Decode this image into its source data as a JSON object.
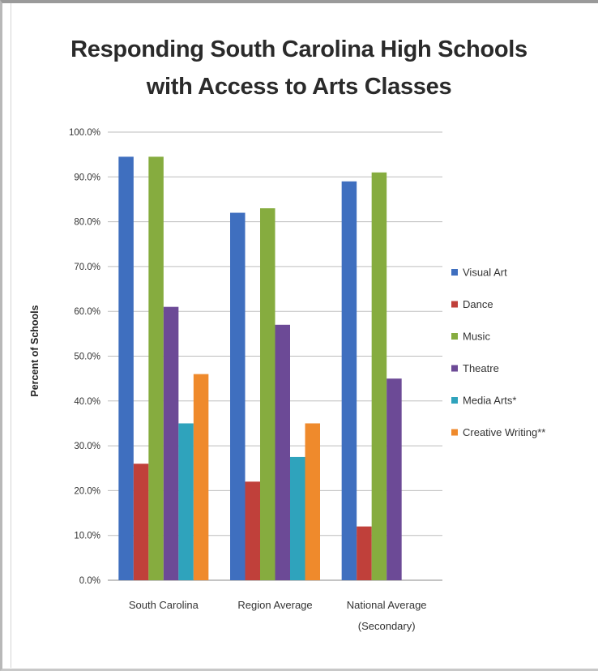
{
  "chart_data": {
    "type": "bar",
    "title_lines": [
      "Responding South Carolina High Schools",
      "with Access to Arts Classes"
    ],
    "ylabel": "Percent of Schools",
    "xlabel": "",
    "ylim": [
      0,
      100
    ],
    "y_ticks": [
      "0.0%",
      "10.0%",
      "20.0%",
      "30.0%",
      "40.0%",
      "50.0%",
      "60.0%",
      "70.0%",
      "80.0%",
      "90.0%",
      "100.0%"
    ],
    "categories": [
      [
        "South Carolina"
      ],
      [
        "Region Average"
      ],
      [
        "National Average",
        "(Secondary)"
      ]
    ],
    "series": [
      {
        "name": "Visual Art",
        "color": "#3f6fbf",
        "values": [
          94.5,
          82,
          89
        ]
      },
      {
        "name": "Dance",
        "color": "#c0403a",
        "values": [
          26,
          22,
          12
        ]
      },
      {
        "name": "Music",
        "color": "#86ac3f",
        "values": [
          94.5,
          83,
          91
        ]
      },
      {
        "name": "Theatre",
        "color": "#6c4a96",
        "values": [
          61,
          57,
          45
        ]
      },
      {
        "name": "Media Arts*",
        "color": "#2fa3bc",
        "values": [
          35,
          27.5,
          null
        ]
      },
      {
        "name": "Creative Writing**",
        "color": "#ef8a2c",
        "values": [
          46,
          35,
          null
        ]
      }
    ],
    "grid": true,
    "legend": "right"
  }
}
